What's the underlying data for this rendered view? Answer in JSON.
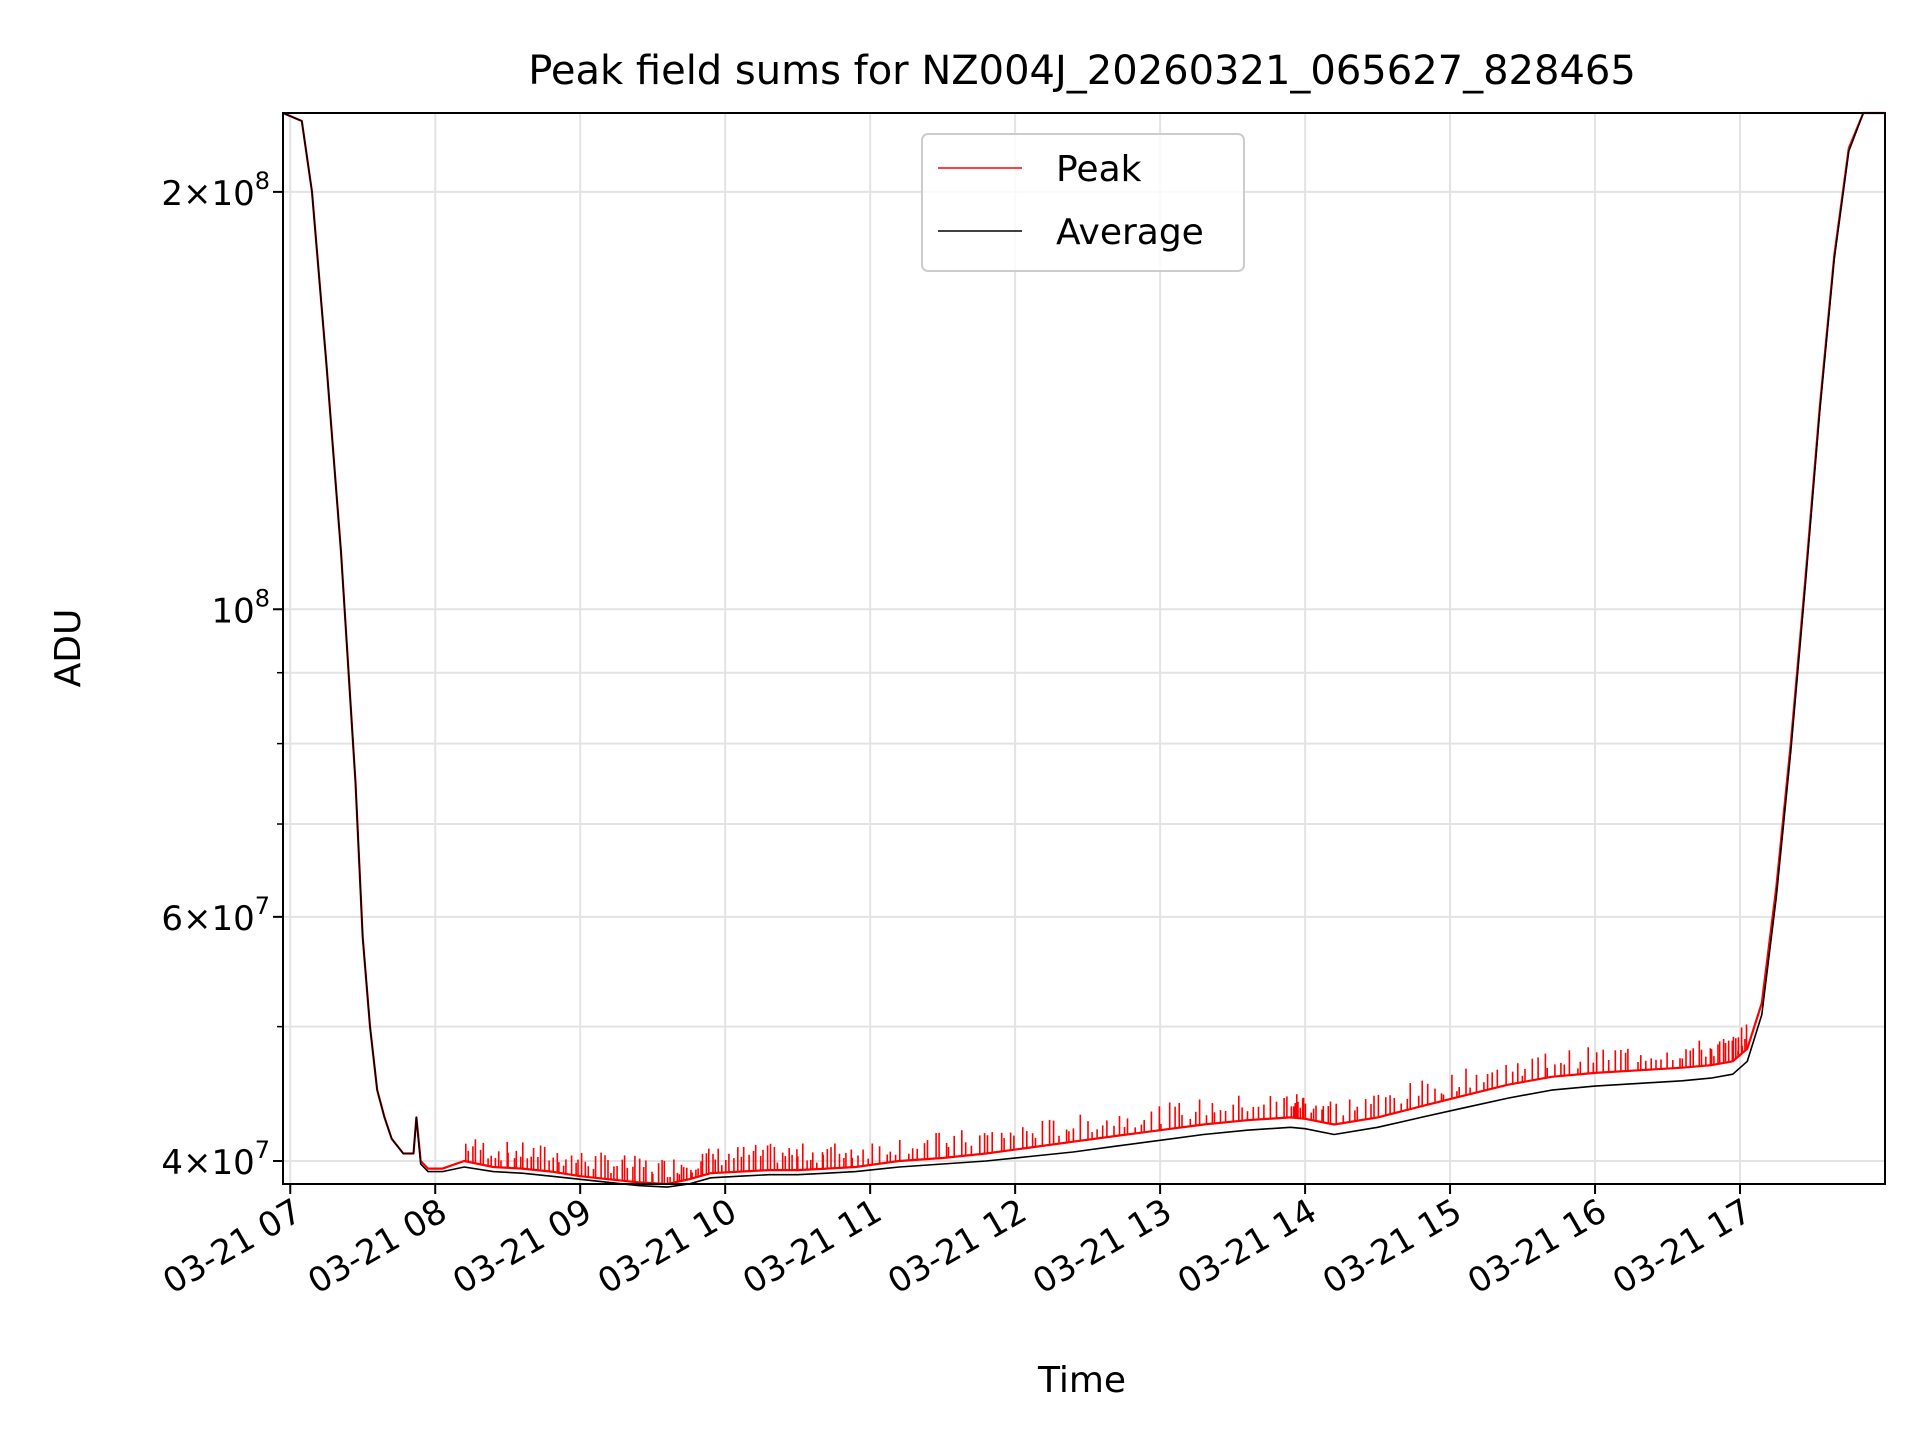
{
  "chart_data": {
    "type": "line",
    "title": "Peak field sums for NZ004J_20260321_065627_828465",
    "xlabel": "Time",
    "ylabel": "ADU",
    "yscale": "log",
    "ylim": [
      38500000,
      228000000
    ],
    "xlim_hours": [
      6.95,
      18.0
    ],
    "grid": true,
    "legend_position": "upper-center",
    "x_ticks": [
      {
        "h": 7,
        "label": "03-21 07"
      },
      {
        "h": 8,
        "label": "03-21 08"
      },
      {
        "h": 9,
        "label": "03-21 09"
      },
      {
        "h": 10,
        "label": "03-21 10"
      },
      {
        "h": 11,
        "label": "03-21 11"
      },
      {
        "h": 12,
        "label": "03-21 12"
      },
      {
        "h": 13,
        "label": "03-21 13"
      },
      {
        "h": 14,
        "label": "03-21 14"
      },
      {
        "h": 15,
        "label": "03-21 15"
      },
      {
        "h": 16,
        "label": "03-21 16"
      },
      {
        "h": 17,
        "label": "03-21 17"
      }
    ],
    "y_major_ticks": [
      {
        "value": 40000000,
        "mantissa": "4",
        "exponent": "7"
      },
      {
        "value": 60000000,
        "mantissa": "6",
        "exponent": "7"
      },
      {
        "value": 100000000,
        "mantissa": "",
        "exponent": "8"
      },
      {
        "value": 200000000,
        "mantissa": "2",
        "exponent": "8"
      }
    ],
    "y_minor_ticks": [
      50000000,
      70000000,
      80000000,
      90000000
    ],
    "series": [
      {
        "name": "Peak",
        "color": "#ff0000",
        "spikes": true,
        "x_hours": [
          6.95,
          7.08,
          7.15,
          7.25,
          7.35,
          7.45,
          7.5,
          7.55,
          7.6,
          7.65,
          7.7,
          7.78,
          7.85,
          7.87,
          7.9,
          7.95,
          8.05,
          8.2,
          8.4,
          8.6,
          8.8,
          9.0,
          9.2,
          9.4,
          9.6,
          9.75,
          9.9,
          10.1,
          10.3,
          10.5,
          10.7,
          10.9,
          11.2,
          11.5,
          11.8,
          12.1,
          12.4,
          12.7,
          13.0,
          13.3,
          13.6,
          13.9,
          14.0,
          14.2,
          14.5,
          14.8,
          15.1,
          15.4,
          15.7,
          16.0,
          16.3,
          16.6,
          16.8,
          16.95,
          17.05,
          17.15,
          17.25,
          17.35,
          17.45,
          17.55,
          17.65,
          17.75,
          17.85,
          18.0
        ],
        "values": [
          228000000,
          225000000,
          200000000,
          150000000,
          110000000,
          75000000,
          58000000,
          50000000,
          45000000,
          43000000,
          41500000,
          40500000,
          40500000,
          43000000,
          40000000,
          39500000,
          39500000,
          40000000,
          39600000,
          39500000,
          39300000,
          39000000,
          38800000,
          38600000,
          38500000,
          38800000,
          39200000,
          39300000,
          39400000,
          39400000,
          39500000,
          39600000,
          40000000,
          40200000,
          40500000,
          40900000,
          41300000,
          41700000,
          42100000,
          42500000,
          42800000,
          43000000,
          42900000,
          42500000,
          43000000,
          43800000,
          44600000,
          45400000,
          46000000,
          46300000,
          46500000,
          46700000,
          46900000,
          47200000,
          48200000,
          52000000,
          63000000,
          80000000,
          105000000,
          140000000,
          180000000,
          215000000,
          228000000,
          228000000
        ]
      },
      {
        "name": "Average",
        "color": "#000000",
        "spikes": false,
        "x_hours": [
          6.95,
          7.08,
          7.15,
          7.25,
          7.35,
          7.45,
          7.5,
          7.55,
          7.6,
          7.65,
          7.7,
          7.78,
          7.85,
          7.87,
          7.9,
          7.95,
          8.05,
          8.2,
          8.4,
          8.6,
          8.8,
          9.0,
          9.2,
          9.4,
          9.6,
          9.75,
          9.9,
          10.1,
          10.3,
          10.5,
          10.7,
          10.9,
          11.2,
          11.5,
          11.8,
          12.1,
          12.4,
          12.7,
          13.0,
          13.3,
          13.6,
          13.9,
          14.0,
          14.2,
          14.5,
          14.8,
          15.1,
          15.4,
          15.7,
          16.0,
          16.3,
          16.6,
          16.8,
          16.95,
          17.05,
          17.15,
          17.25,
          17.35,
          17.45,
          17.55,
          17.65,
          17.75,
          17.85,
          18.0
        ],
        "values": [
          228000000,
          225000000,
          200000000,
          150000000,
          110000000,
          75000000,
          58000000,
          50000000,
          45000000,
          43000000,
          41500000,
          40500000,
          40500000,
          43000000,
          39800000,
          39300000,
          39300000,
          39600000,
          39300000,
          39200000,
          39000000,
          38800000,
          38600000,
          38400000,
          38300000,
          38500000,
          38900000,
          39000000,
          39100000,
          39100000,
          39200000,
          39300000,
          39600000,
          39800000,
          40000000,
          40300000,
          40600000,
          41000000,
          41400000,
          41800000,
          42100000,
          42300000,
          42200000,
          41800000,
          42300000,
          43000000,
          43700000,
          44400000,
          45000000,
          45300000,
          45500000,
          45700000,
          45900000,
          46200000,
          47200000,
          51000000,
          62000000,
          79000000,
          104000000,
          139000000,
          179000000,
          214000000,
          228000000,
          228000000
        ]
      }
    ],
    "annotations": []
  }
}
